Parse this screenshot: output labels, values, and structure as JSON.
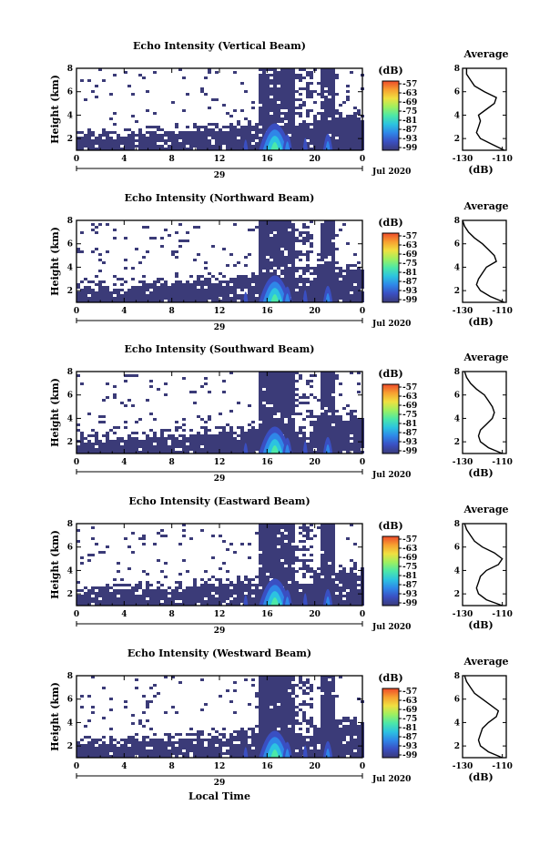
{
  "figure": {
    "x_caption": "Local Time",
    "date_label": "Jul 2020",
    "day_label": "29",
    "avg_title": "Average",
    "avg_xlabel": "(dB)",
    "colorbar_label": "(dB)",
    "colorbar_ticks": [
      "-57",
      "-63",
      "-69",
      "-75",
      "-81",
      "-87",
      "-93",
      "-99"
    ],
    "colors": {
      "background_noise": "#3b3b78",
      "scale": [
        "#3b3b78",
        "#3a4fc2",
        "#2f86e8",
        "#2cc3e0",
        "#4ce8a8",
        "#9ef060",
        "#f0e040",
        "#f7a030",
        "#ee4a2a"
      ]
    }
  },
  "chart_data": [
    {
      "type": "heatmap",
      "title": "Echo Intensity (Vertical Beam)",
      "ylabel": "Height (km)",
      "x_ticks": [
        "0",
        "4",
        "8",
        "12",
        "16",
        "20",
        "0"
      ],
      "y_ticks": [
        "2",
        "4",
        "6",
        "8"
      ],
      "xlim": [
        0,
        24
      ],
      "ylim": [
        1,
        8
      ],
      "clim": [
        -99,
        -57
      ],
      "avg_profile": {
        "type": "line",
        "title": "Average",
        "xlabel": "(dB)",
        "x_ticks": [
          "-130",
          "-110"
        ],
        "y_ticks": [
          "2",
          "4",
          "6",
          "8"
        ],
        "xlim": [
          -130,
          -108
        ],
        "ylim": [
          1,
          8
        ],
        "height": [
          1.0,
          1.5,
          2.0,
          2.5,
          3.0,
          3.5,
          4.0,
          4.5,
          5.0,
          5.5,
          6.0,
          6.5,
          7.0,
          7.5,
          8.0
        ],
        "value": [
          -109,
          -115,
          -121,
          -123,
          -122,
          -121,
          -122,
          -118,
          -114,
          -113,
          -119,
          -124,
          -126,
          -128,
          -128
        ]
      }
    },
    {
      "type": "heatmap",
      "title": "Echo Intensity (Northward Beam)",
      "ylabel": "Height (km)",
      "x_ticks": [
        "0",
        "4",
        "8",
        "12",
        "16",
        "20",
        "0"
      ],
      "y_ticks": [
        "2",
        "4",
        "6",
        "8"
      ],
      "xlim": [
        0,
        24
      ],
      "ylim": [
        1,
        8
      ],
      "clim": [
        -99,
        -57
      ],
      "avg_profile": {
        "type": "line",
        "title": "Average",
        "xlabel": "(dB)",
        "x_ticks": [
          "-130",
          "-110"
        ],
        "y_ticks": [
          "2",
          "4",
          "6",
          "8"
        ],
        "xlim": [
          -130,
          -108
        ],
        "ylim": [
          1,
          8
        ],
        "height": [
          1.0,
          1.5,
          2.0,
          2.5,
          3.0,
          3.5,
          4.0,
          4.5,
          5.0,
          5.5,
          6.0,
          6.5,
          7.0,
          7.5,
          8.0
        ],
        "value": [
          -109,
          -116,
          -121,
          -123,
          -122,
          -120,
          -118,
          -113,
          -114,
          -117,
          -120,
          -124,
          -127,
          -129,
          -130
        ]
      }
    },
    {
      "type": "heatmap",
      "title": "Echo Intensity (Southward Beam)",
      "ylabel": "Height (km)",
      "x_ticks": [
        "0",
        "4",
        "8",
        "12",
        "16",
        "20",
        "0"
      ],
      "y_ticks": [
        "2",
        "4",
        "6",
        "8"
      ],
      "xlim": [
        0,
        24
      ],
      "ylim": [
        1,
        8
      ],
      "clim": [
        -99,
        -57
      ],
      "avg_profile": {
        "type": "line",
        "title": "Average",
        "xlabel": "(dB)",
        "x_ticks": [
          "-130",
          "-110"
        ],
        "y_ticks": [
          "2",
          "4",
          "6",
          "8"
        ],
        "xlim": [
          -130,
          -108
        ],
        "ylim": [
          1,
          8
        ],
        "height": [
          1.0,
          1.5,
          2.0,
          2.5,
          3.0,
          3.5,
          4.0,
          4.5,
          5.0,
          5.5,
          6.0,
          6.5,
          7.0,
          7.5,
          8.0
        ],
        "value": [
          -110,
          -117,
          -121,
          -122,
          -121,
          -118,
          -115,
          -114,
          -115,
          -117,
          -119,
          -123,
          -126,
          -128,
          -129
        ]
      }
    },
    {
      "type": "heatmap",
      "title": "Echo Intensity (Eastward Beam)",
      "ylabel": "Height (km)",
      "x_ticks": [
        "0",
        "4",
        "8",
        "12",
        "16",
        "20",
        "0"
      ],
      "y_ticks": [
        "2",
        "4",
        "6",
        "8"
      ],
      "xlim": [
        0,
        24
      ],
      "ylim": [
        1,
        8
      ],
      "clim": [
        -99,
        -57
      ],
      "avg_profile": {
        "type": "line",
        "title": "Average",
        "xlabel": "(dB)",
        "x_ticks": [
          "-130",
          "-110"
        ],
        "y_ticks": [
          "2",
          "4",
          "6",
          "8"
        ],
        "xlim": [
          -130,
          -108
        ],
        "ylim": [
          1,
          8
        ],
        "height": [
          1.0,
          1.5,
          2.0,
          2.5,
          3.0,
          3.5,
          4.0,
          4.5,
          5.0,
          5.5,
          6.0,
          6.5,
          7.0,
          7.5,
          8.0
        ],
        "value": [
          -110,
          -118,
          -122,
          -123,
          -122,
          -121,
          -118,
          -112,
          -110,
          -114,
          -120,
          -124,
          -126,
          -128,
          -129
        ]
      }
    },
    {
      "type": "heatmap",
      "title": "Echo Intensity (Westward Beam)",
      "ylabel": "Height (km)",
      "x_ticks": [
        "0",
        "4",
        "8",
        "12",
        "16",
        "20",
        "0"
      ],
      "y_ticks": [
        "2",
        "4",
        "6",
        "8"
      ],
      "xlim": [
        0,
        24
      ],
      "ylim": [
        1,
        8
      ],
      "clim": [
        -99,
        -57
      ],
      "avg_profile": {
        "type": "line",
        "title": "Average",
        "xlabel": "(dB)",
        "x_ticks": [
          "-130",
          "-110"
        ],
        "y_ticks": [
          "2",
          "4",
          "6",
          "8"
        ],
        "xlim": [
          -130,
          -108
        ],
        "ylim": [
          1,
          8
        ],
        "height": [
          1.0,
          1.5,
          2.0,
          2.5,
          3.0,
          3.5,
          4.0,
          4.5,
          5.0,
          5.5,
          6.0,
          6.5,
          7.0,
          7.5,
          8.0
        ],
        "value": [
          -110,
          -117,
          -121,
          -122,
          -121,
          -120,
          -117,
          -113,
          -112,
          -116,
          -120,
          -124,
          -126,
          -128,
          -129
        ]
      }
    }
  ]
}
